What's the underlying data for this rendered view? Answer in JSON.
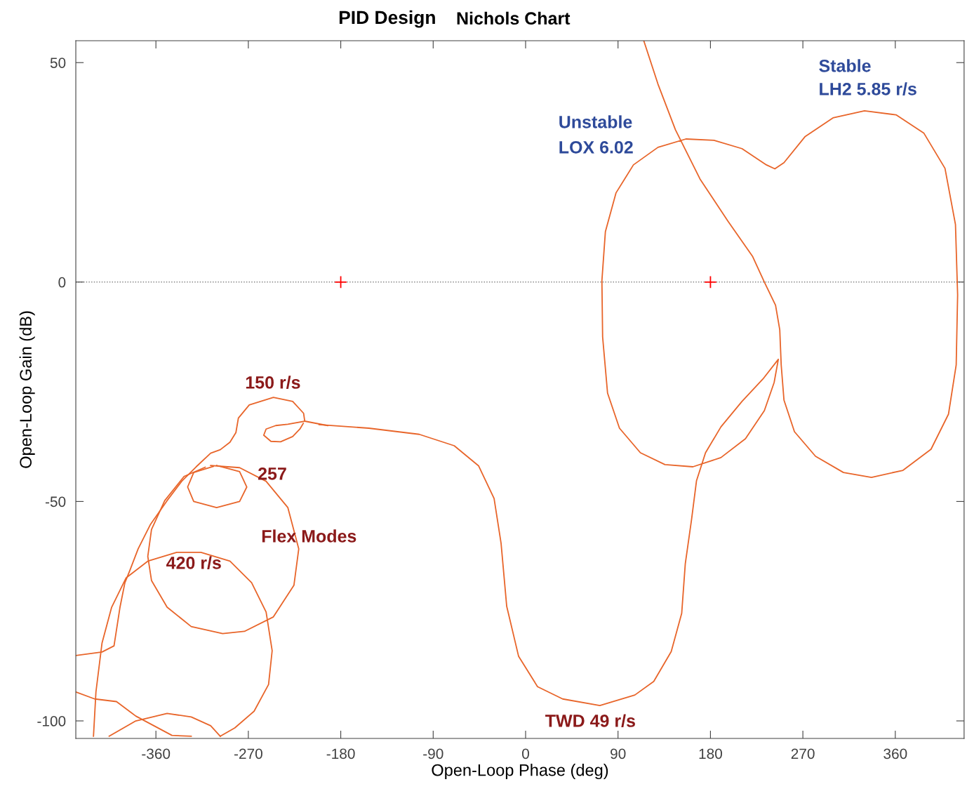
{
  "chart_data": {
    "type": "line",
    "title": "PID Design",
    "subtitle": "Nichols Chart",
    "xlabel": "Open-Loop Phase (deg)",
    "ylabel": "Open-Loop Gain (dB)",
    "xlim": [
      -438,
      427
    ],
    "ylim": [
      -104,
      55
    ],
    "xticks": [
      -360,
      -270,
      -180,
      -90,
      0,
      90,
      180,
      270,
      360
    ],
    "yticks": [
      -100,
      -50,
      0,
      50
    ],
    "grid": false,
    "legend": false,
    "marker": "none",
    "line_style": "solid",
    "ref_lines": [
      {
        "axis": "y",
        "value": 0,
        "color": "#808080",
        "line_style": "dotted"
      }
    ],
    "series": [
      {
        "color": "#e8652a",
        "x": [
          115.2,
          128.9,
          145.9,
          169.8,
          197.0,
          220.9,
          232.5,
          243.4,
          247.5,
          248.9,
          251.6,
          261.8,
          282.3,
          309.5,
          336.8,
          367.5,
          394.8,
          411.8,
          419.3,
          420.7,
          418.6,
          408.4,
          387.9,
          360.7,
          330.0,
          299.3,
          272.0,
          251.6,
          242.7,
          234.5,
          210.7,
          183.4,
          156.1,
          128.9,
          105.0,
          88.0,
          77.7,
          74.3,
          75.0,
          79.8,
          91.4,
          111.8,
          135.7,
          162.9,
          190.2,
          214.1,
          232.5,
          242.0,
          246.1,
          231.1,
          210.7,
          190.2,
          175.2,
          166.4,
          161.6,
          155.5,
          152.0,
          141.8,
          124.8,
          106.4,
          72.3,
          36.1,
          11.6,
          -6.8,
          -18.4,
          -23.9,
          -30.7,
          -45.7,
          -69.5,
          -103.6,
          -152.7,
          -201.1
        ],
        "values": [
          54.9,
          45.1,
          34.7,
          23.5,
          13.9,
          5.9,
          0,
          -5.3,
          -10.9,
          -18.9,
          -26.9,
          -34.1,
          -39.7,
          -43.4,
          -44.5,
          -42.9,
          -38.1,
          -30.1,
          -18.9,
          -2.9,
          13.1,
          25.9,
          33.9,
          38.1,
          39.0,
          37.4,
          33.1,
          27.2,
          25.8,
          26.7,
          30.4,
          32.3,
          32.6,
          30.7,
          26.7,
          20.3,
          11.5,
          0.3,
          -12.5,
          -25.3,
          -33.3,
          -38.9,
          -41.6,
          -42.1,
          -40.0,
          -35.7,
          -29.3,
          -22.9,
          -17.6,
          -22.1,
          -27.2,
          -33.0,
          -38.9,
          -45.3,
          -54.1,
          -64.2,
          -75.5,
          -84.2,
          -91.0,
          -94.1,
          -96.5,
          -95.0,
          -92.2,
          -85.3,
          -73.9,
          -59.5,
          -49.3,
          -41.9,
          -37.3,
          -34.7,
          -33.3,
          -32.5
        ]
      },
      {
        "color": "#e8652a",
        "x": [
          -192.7,
          -215.1,
          -216.2,
          -226.8,
          -245.6,
          -269.1,
          -279.7,
          -282.1,
          -287.9,
          -297.3,
          -306.7,
          -320.8,
          -334.9,
          -349.1,
          -365.5,
          -377.3,
          -385.5,
          -390.2,
          -394.9,
          -400.8,
          -412.5,
          -437.9
        ],
        "values": [
          -32.7,
          -31.7,
          -29.9,
          -27.2,
          -26.3,
          -28.0,
          -31.0,
          -34.3,
          -36.5,
          -38.2,
          -39.0,
          -42.1,
          -45.4,
          -49.8,
          -55.3,
          -60.8,
          -65.8,
          -68.5,
          -74.0,
          -82.9,
          -84.3,
          -85.1
        ]
      },
      {
        "color": "#e8652a",
        "x": [
          -215.1,
          -231.5,
          -243.3,
          -252.7,
          -255.0,
          -248.0,
          -238.6,
          -226.8,
          -219.8,
          -216.5
        ],
        "values": [
          -31.7,
          -32.4,
          -32.7,
          -33.5,
          -34.9,
          -36.3,
          -36.4,
          -35.2,
          -33.5,
          -32.2
        ]
      },
      {
        "color": "#e8652a",
        "x": [
          -300.9,
          -278.5,
          -271.5,
          -278.5,
          -300.9,
          -323.2,
          -329.1,
          -323.2,
          -304.0
        ],
        "values": [
          -41.8,
          -43.2,
          -46.7,
          -50.0,
          -51.4,
          -50.0,
          -46.7,
          -43.4,
          -42.0
        ]
      },
      {
        "color": "#e8652a",
        "x": [
          -306.7,
          -278.5,
          -252.7,
          -231.5,
          -220.9,
          -225.6,
          -245.6,
          -273.8,
          -295.0,
          -325.6,
          -349.1,
          -364.3,
          -367.9,
          -364.3,
          -351.4,
          -332.6,
          -312.0
        ],
        "values": [
          -41.8,
          -42.3,
          -45.4,
          -51.4,
          -60.8,
          -69.1,
          -76.3,
          -79.6,
          -80.1,
          -78.5,
          -74.1,
          -68.0,
          -62.5,
          -56.4,
          -49.8,
          -44.3,
          -42.2
        ]
      },
      {
        "color": "#e8652a",
        "x": [
          -420.8,
          -418.4,
          -412.5,
          -403.1,
          -389.0,
          -367.9,
          -339.7,
          -316.2,
          -287.9,
          -266.8,
          -252.7,
          -246.8,
          -250.3,
          -264.4,
          -283.2,
          -297.3
        ],
        "values": [
          -103.5,
          -93.4,
          -82.3,
          -74.1,
          -67.4,
          -63.6,
          -61.6,
          -61.6,
          -63.6,
          -68.5,
          -75.2,
          -84.0,
          -91.7,
          -97.8,
          -101.6,
          -103.5
        ]
      },
      {
        "color": "#e8652a",
        "x": [
          -437.9,
          -419.6,
          -398.4,
          -379.6,
          -344.4,
          -325.6
        ],
        "values": [
          -93.4,
          -95.0,
          -95.6,
          -98.9,
          -103.3,
          -103.5
        ]
      },
      {
        "color": "#e8652a",
        "x": [
          -405.5,
          -379.6,
          -349.1,
          -325.6,
          -306.7,
          -297.3
        ],
        "values": [
          -103.5,
          -100.0,
          -98.3,
          -99.1,
          -101.1,
          -103.5
        ]
      },
      {
        "type": "scatter",
        "marker": "cross",
        "color": "#ff0000",
        "x": [
          -180,
          180
        ],
        "values": [
          0,
          0
        ]
      }
    ],
    "annotations": [
      "150 r/s",
      "257",
      "Flex Modes",
      "420 r/s",
      "TWD 49 r/s",
      "Unstable",
      "LOX 6.02",
      "Stable",
      "LH2 5.85 r/s"
    ]
  }
}
